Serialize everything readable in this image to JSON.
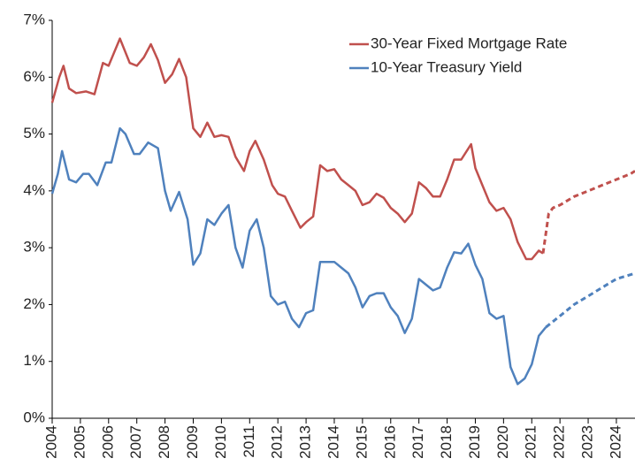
{
  "chart_data": {
    "type": "line",
    "xlim": [
      2004,
      2024.66
    ],
    "xticks": [
      2004,
      2005,
      2006,
      2007,
      2008,
      2009,
      2010,
      2011,
      2012,
      2013,
      2014,
      2015,
      2016,
      2017,
      2018,
      2019,
      2020,
      2021,
      2022,
      2023,
      2024
    ],
    "ylim": [
      0,
      7
    ],
    "yticks": [
      {
        "value": 0,
        "label": "0%"
      },
      {
        "value": 1,
        "label": "1%"
      },
      {
        "value": 2,
        "label": "2%"
      },
      {
        "value": 3,
        "label": "3%"
      },
      {
        "value": 4,
        "label": "4%"
      },
      {
        "value": 5,
        "label": "5%"
      },
      {
        "value": 6,
        "label": "6%"
      },
      {
        "value": 7,
        "label": "7%"
      }
    ],
    "grid": false,
    "legend": "upper right",
    "forecast_from": 2021.6,
    "series": [
      {
        "name": "30-Year Fixed Mortgage Rate",
        "color": "#c0504d",
        "x": [
          2004.0,
          2004.25,
          2004.4,
          2004.6,
          2004.85,
          2005.2,
          2005.5,
          2005.8,
          2006.0,
          2006.4,
          2006.75,
          2007.0,
          2007.25,
          2007.5,
          2007.75,
          2008.0,
          2008.25,
          2008.5,
          2008.75,
          2009.0,
          2009.25,
          2009.5,
          2009.75,
          2010.0,
          2010.25,
          2010.5,
          2010.8,
          2011.0,
          2011.2,
          2011.5,
          2011.8,
          2012.0,
          2012.25,
          2012.5,
          2012.8,
          2013.0,
          2013.25,
          2013.5,
          2013.75,
          2014.0,
          2014.25,
          2014.5,
          2014.75,
          2015.0,
          2015.25,
          2015.5,
          2015.75,
          2016.0,
          2016.25,
          2016.5,
          2016.75,
          2017.0,
          2017.25,
          2017.5,
          2017.75,
          2018.0,
          2018.25,
          2018.5,
          2018.85,
          2019.0,
          2019.25,
          2019.5,
          2019.75,
          2020.0,
          2020.25,
          2020.5,
          2020.8,
          2021.0,
          2021.25,
          2021.4,
          2021.6,
          2021.75,
          2022.0,
          2022.5,
          2023.0,
          2023.5,
          2024.0,
          2024.5,
          2024.66
        ],
        "values": [
          5.55,
          6.0,
          6.2,
          5.8,
          5.72,
          5.75,
          5.7,
          6.25,
          6.2,
          6.68,
          6.25,
          6.2,
          6.35,
          6.58,
          6.3,
          5.9,
          6.05,
          6.32,
          6.0,
          5.1,
          4.95,
          5.2,
          4.95,
          4.98,
          4.95,
          4.6,
          4.35,
          4.7,
          4.88,
          4.55,
          4.1,
          3.95,
          3.9,
          3.65,
          3.35,
          3.45,
          3.55,
          4.45,
          4.35,
          4.38,
          4.2,
          4.1,
          4.0,
          3.75,
          3.8,
          3.95,
          3.88,
          3.7,
          3.6,
          3.45,
          3.6,
          4.15,
          4.05,
          3.9,
          3.9,
          4.2,
          4.55,
          4.55,
          4.82,
          4.4,
          4.1,
          3.8,
          3.65,
          3.7,
          3.5,
          3.1,
          2.8,
          2.8,
          2.95,
          2.9,
          3.6,
          3.7,
          3.75,
          3.9,
          4.0,
          4.1,
          4.2,
          4.3,
          4.35
        ]
      },
      {
        "name": "10-Year Treasury Yield",
        "color": "#4f81bd",
        "x": [
          2004.0,
          2004.2,
          2004.35,
          2004.6,
          2004.85,
          2005.1,
          2005.3,
          2005.6,
          2005.9,
          2006.1,
          2006.4,
          2006.6,
          2006.9,
          2007.1,
          2007.4,
          2007.75,
          2008.0,
          2008.2,
          2008.5,
          2008.8,
          2009.0,
          2009.25,
          2009.5,
          2009.75,
          2010.0,
          2010.25,
          2010.5,
          2010.75,
          2011.0,
          2011.25,
          2011.5,
          2011.75,
          2012.0,
          2012.25,
          2012.5,
          2012.75,
          2013.0,
          2013.25,
          2013.5,
          2013.75,
          2014.0,
          2014.25,
          2014.5,
          2014.75,
          2015.0,
          2015.25,
          2015.5,
          2015.75,
          2016.0,
          2016.25,
          2016.5,
          2016.75,
          2017.0,
          2017.25,
          2017.5,
          2017.75,
          2018.0,
          2018.25,
          2018.5,
          2018.75,
          2019.0,
          2019.25,
          2019.5,
          2019.75,
          2020.0,
          2020.25,
          2020.5,
          2020.75,
          2021.0,
          2021.25,
          2021.5,
          2021.75,
          2022.0,
          2022.5,
          2023.0,
          2023.5,
          2024.0,
          2024.66
        ],
        "values": [
          3.95,
          4.3,
          4.7,
          4.2,
          4.15,
          4.3,
          4.3,
          4.1,
          4.5,
          4.5,
          5.1,
          5.0,
          4.65,
          4.65,
          4.85,
          4.75,
          4.0,
          3.65,
          3.98,
          3.5,
          2.7,
          2.9,
          3.5,
          3.4,
          3.6,
          3.75,
          3.0,
          2.65,
          3.3,
          3.5,
          3.0,
          2.15,
          2.0,
          2.05,
          1.75,
          1.6,
          1.85,
          1.9,
          2.75,
          2.75,
          2.75,
          2.65,
          2.55,
          2.3,
          1.95,
          2.15,
          2.2,
          2.2,
          1.95,
          1.8,
          1.5,
          1.75,
          2.45,
          2.35,
          2.25,
          2.3,
          2.65,
          2.92,
          2.9,
          3.07,
          2.7,
          2.45,
          1.85,
          1.75,
          1.8,
          0.9,
          0.6,
          0.7,
          0.95,
          1.45,
          1.6,
          1.7,
          1.8,
          2.0,
          2.15,
          2.3,
          2.45,
          2.55
        ]
      }
    ]
  }
}
